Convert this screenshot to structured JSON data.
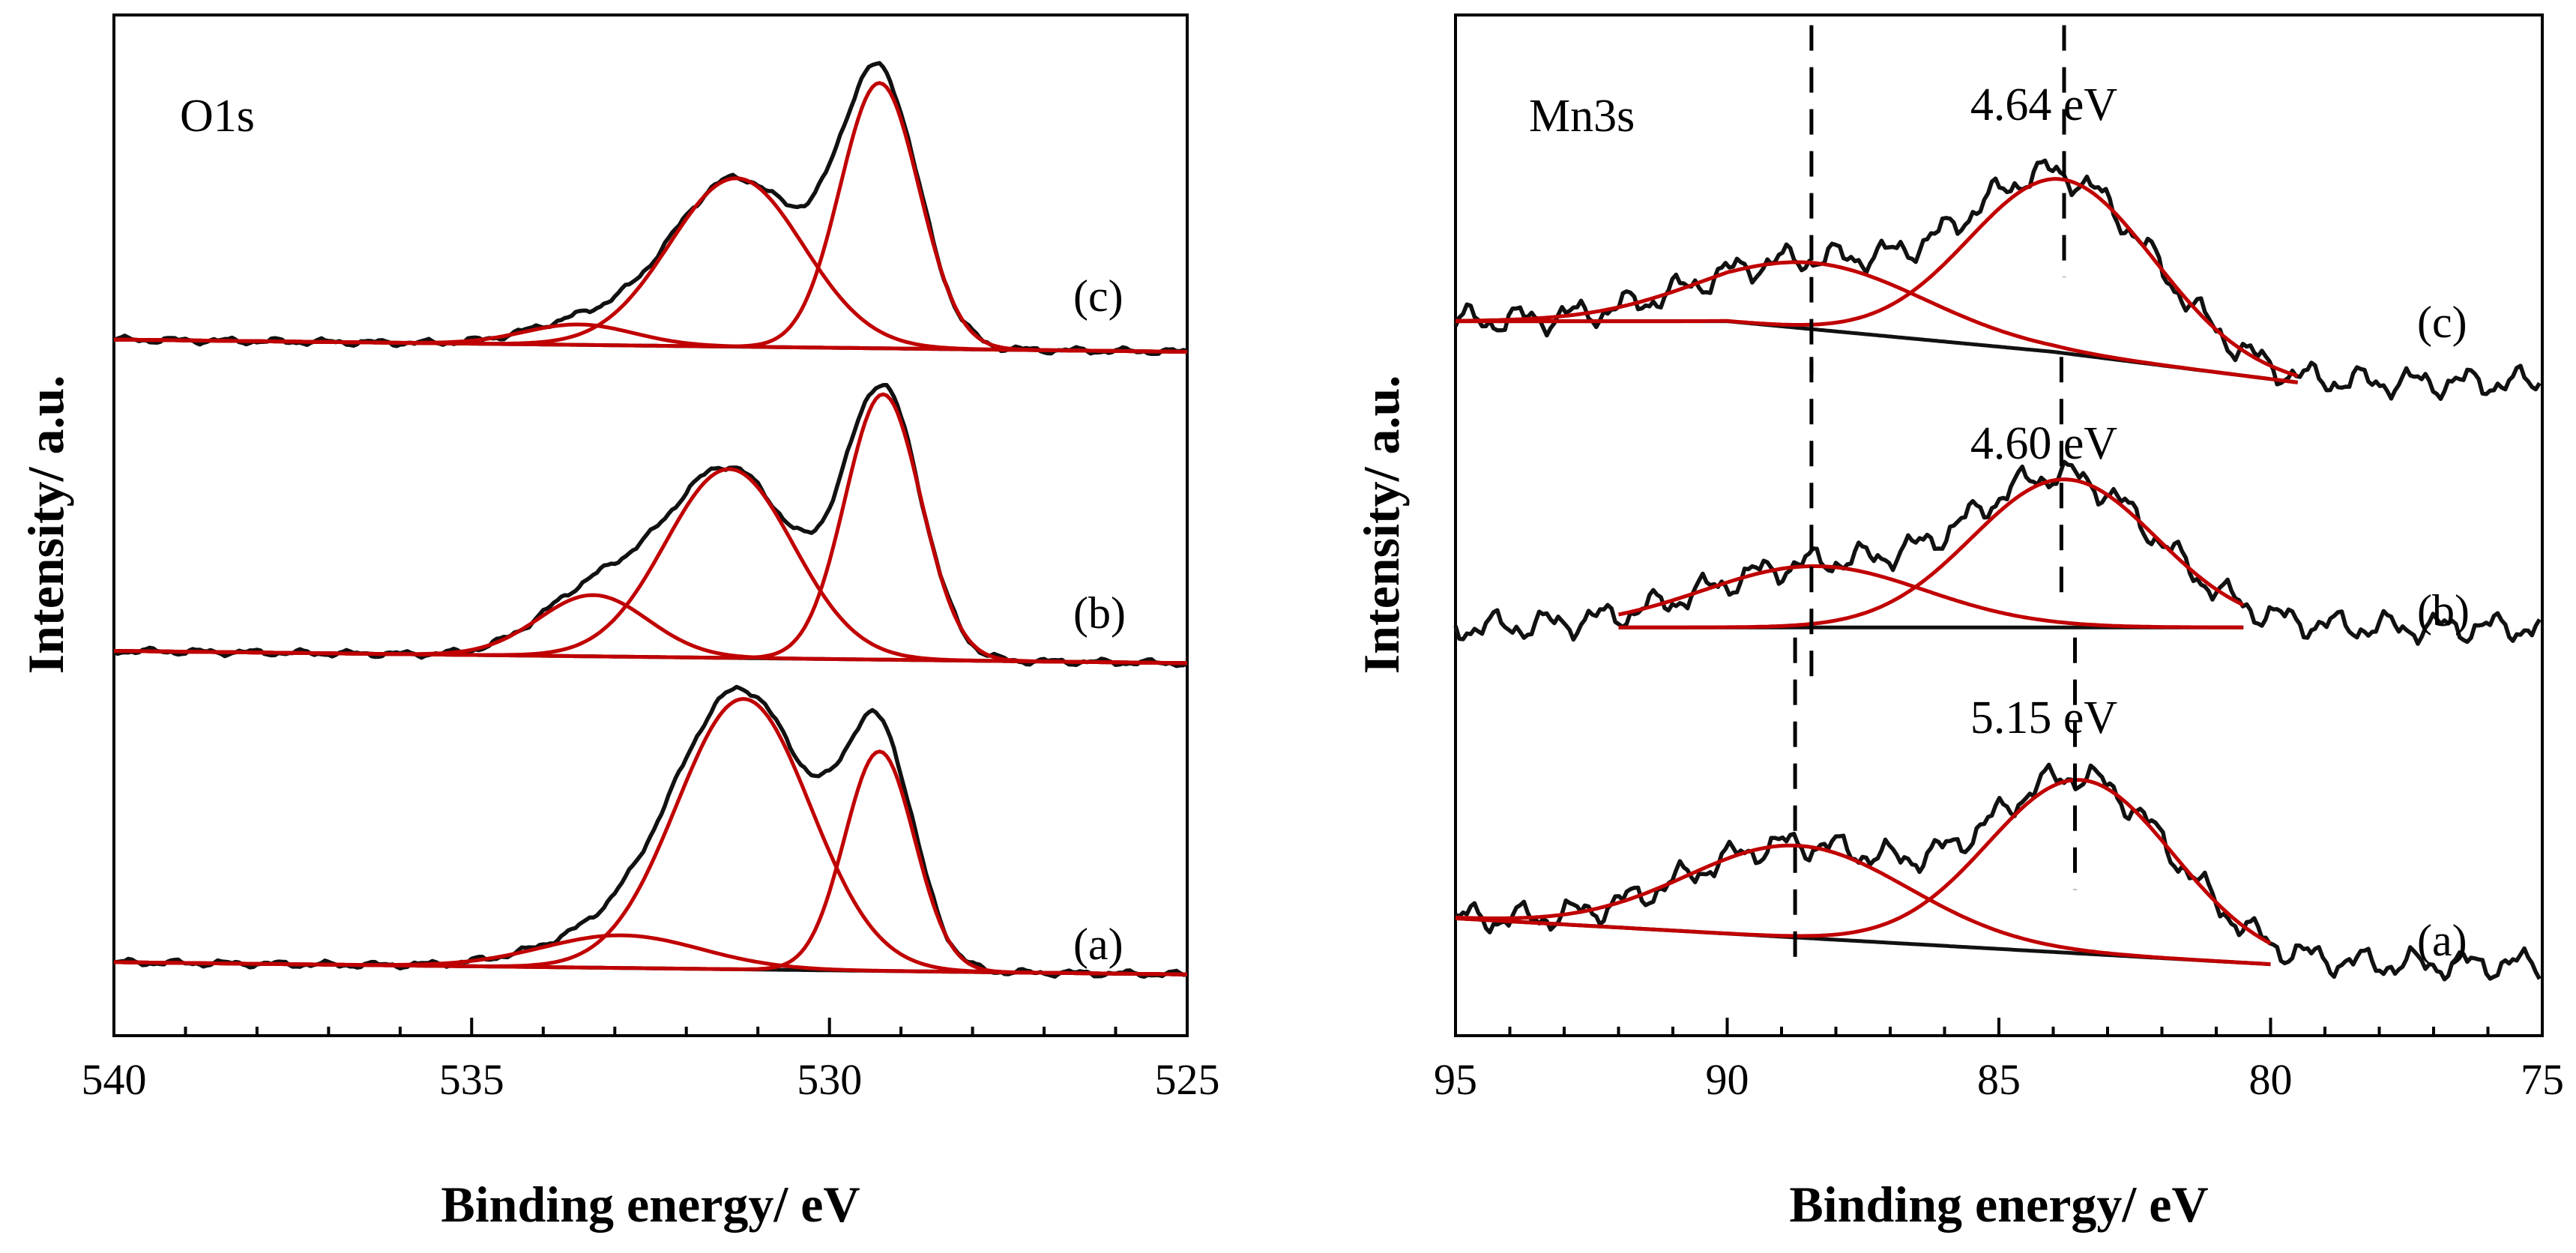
{
  "chart_data": [
    {
      "type": "line",
      "title": "O1s",
      "xlabel": "Binding energy/ eV",
      "ylabel": "Intensity/ a.u.",
      "xlim": [
        540,
        525
      ],
      "x_reversed": true,
      "xticks": [
        540,
        535,
        530,
        525
      ],
      "ylim": [
        0,
        1
      ],
      "yticks": [],
      "colors": {
        "data": "#111111",
        "fit": "#c00000",
        "background": "#111111"
      },
      "series": [
        {
          "name": "(a)",
          "offset": 0.06,
          "background": [
            [
              540,
              0.012
            ],
            [
              525,
              0.0
            ]
          ],
          "peaks": [
            {
              "center": 529.3,
              "height": 0.215,
              "fwhm": 1.15
            },
            {
              "center": 531.2,
              "height": 0.265,
              "fwhm": 2.2
            },
            {
              "center": 532.9,
              "height": 0.032,
              "fwhm": 2.6
            }
          ]
        },
        {
          "name": "(b)",
          "offset": 0.365,
          "background": [
            [
              540,
              0.012
            ],
            [
              525,
              0.0
            ]
          ],
          "peaks": [
            {
              "center": 529.25,
              "height": 0.26,
              "fwhm": 1.25
            },
            {
              "center": 531.4,
              "height": 0.185,
              "fwhm": 2.1
            },
            {
              "center": 533.3,
              "height": 0.06,
              "fwhm": 1.8
            }
          ]
        },
        {
          "name": "(c)",
          "offset": 0.67,
          "background": [
            [
              540,
              0.012
            ],
            [
              525,
              0.0
            ]
          ],
          "peaks": [
            {
              "center": 529.3,
              "height": 0.26,
              "fwhm": 1.3
            },
            {
              "center": 531.3,
              "height": 0.165,
              "fwhm": 2.2
            },
            {
              "center": 533.5,
              "height": 0.02,
              "fwhm": 1.8
            }
          ]
        }
      ]
    },
    {
      "type": "line",
      "title": "Mn3s",
      "xlabel": "Binding energy/ eV",
      "ylabel": "Intensity/ a.u.",
      "xlim": [
        95,
        75
      ],
      "x_reversed": true,
      "xticks": [
        95,
        90,
        85,
        80,
        75
      ],
      "ylim": [
        0,
        1
      ],
      "yticks": [],
      "colors": {
        "data": "#111111",
        "fit": "#c00000",
        "background": "#111111"
      },
      "series": [
        {
          "name": "(a)",
          "offset": 0.1,
          "fit_range": [
            95,
            80
          ],
          "background": [
            [
              95,
              0.015
            ],
            [
              80,
              -0.03
            ]
          ],
          "peaks": [
            {
              "center": 88.7,
              "height": 0.09,
              "fwhm": 4.8
            },
            {
              "center": 83.5,
              "height": 0.17,
              "fwhm": 4.0
            }
          ],
          "splitting_label": "5.15 eV",
          "markers": [
            88.75,
            83.6
          ]
        },
        {
          "name": "(b)",
          "offset": 0.4,
          "fit_range": [
            92,
            80.5
          ],
          "background": [
            [
              92,
              0.0
            ],
            [
              80.5,
              0.0
            ]
          ],
          "peaks": [
            {
              "center": 88.4,
              "height": 0.06,
              "fwhm": 4.8
            },
            {
              "center": 83.8,
              "height": 0.145,
              "fwhm": 4.0
            }
          ],
          "splitting_label": "4.60 eV",
          "markers": [
            88.45,
            83.85
          ]
        },
        {
          "name": "(c)",
          "offset": 0.7,
          "fit_range": [
            95,
            79.5
          ],
          "background": [
            [
              95,
              0.0
            ],
            [
              90,
              0.0
            ],
            [
              84,
              -0.03
            ],
            [
              79.5,
              -0.06
            ]
          ],
          "peaks": [
            {
              "center": 88.4,
              "height": 0.065,
              "fwhm": 4.8
            },
            {
              "center": 83.85,
              "height": 0.17,
              "fwhm": 4.0
            }
          ],
          "splitting_label": "4.64 eV",
          "markers": [
            88.45,
            83.8
          ]
        }
      ]
    }
  ]
}
